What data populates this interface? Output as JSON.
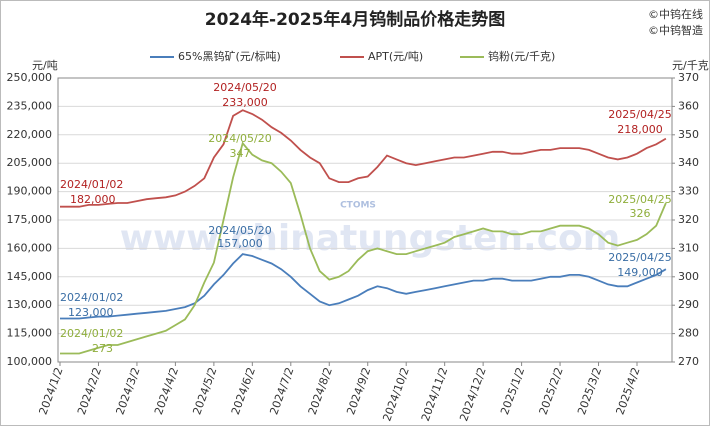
{
  "chart_data": {
    "type": "line",
    "title": "2024年-2025年4月钨制品价格走势图",
    "source": [
      "©中钨在线",
      "©中钨智造"
    ],
    "y_unit": "元/吨",
    "y2_unit": "元/千克",
    "watermark": [
      "CTOMS",
      "www.chinatungsten.com"
    ],
    "categories": [
      "2024/1/2",
      null,
      null,
      null,
      "2024/2/2",
      null,
      null,
      null,
      "2024/3/2",
      null,
      null,
      null,
      "2024/4/2",
      null,
      null,
      null,
      "2024/5/2",
      null,
      null,
      null,
      "2024/6/2",
      null,
      null,
      null,
      "2024/7/2",
      null,
      null,
      null,
      "2024/8/2",
      null,
      null,
      null,
      "2024/9/2",
      null,
      null,
      null,
      "2024/10/2",
      null,
      null,
      null,
      "2024/11/2",
      null,
      null,
      null,
      "2024/12/2",
      null,
      null,
      null,
      "2025/1/2",
      null,
      null,
      null,
      "2025/2/2",
      null,
      null,
      null,
      "2025/3/2",
      null,
      null,
      null,
      "2025/4/2",
      null,
      null,
      null
    ],
    "series": [
      {
        "name": "65%黑钨矿(元/标吨)",
        "color": "#4a7ebb",
        "axis": "y",
        "values": [
          123000,
          123000,
          123000,
          123500,
          124000,
          124000,
          124500,
          125000,
          125500,
          126000,
          126500,
          127000,
          128000,
          129000,
          131000,
          135000,
          141000,
          146000,
          152000,
          157000,
          156000,
          154000,
          152000,
          149000,
          145000,
          140000,
          136000,
          132000,
          130000,
          131000,
          133000,
          135000,
          138000,
          140000,
          139000,
          137000,
          136000,
          137000,
          138000,
          139000,
          140000,
          141000,
          142000,
          143000,
          143000,
          144000,
          144000,
          143000,
          143000,
          143000,
          144000,
          145000,
          145000,
          146000,
          146000,
          145000,
          143000,
          141000,
          140000,
          140000,
          142000,
          144000,
          146000,
          149000
        ]
      },
      {
        "name": "APT(元/吨)",
        "color": "#c0504d",
        "axis": "y",
        "values": [
          182000,
          182000,
          182000,
          183000,
          183000,
          183500,
          184000,
          184000,
          185000,
          186000,
          186500,
          187000,
          188000,
          190000,
          193000,
          197000,
          208000,
          215000,
          230000,
          233000,
          231000,
          228000,
          224000,
          221000,
          217000,
          212000,
          208000,
          205000,
          197000,
          195000,
          195000,
          197000,
          198000,
          203000,
          209000,
          207000,
          205000,
          204000,
          205000,
          206000,
          207000,
          208000,
          208000,
          209000,
          210000,
          211000,
          211000,
          210000,
          210000,
          211000,
          212000,
          212000,
          213000,
          213000,
          213000,
          212000,
          210000,
          208000,
          207000,
          208000,
          210000,
          213000,
          215000,
          218000
        ]
      },
      {
        "name": "钨粉(元/千克)",
        "color": "#9bbb59",
        "axis": "y2",
        "values": [
          273,
          273,
          273,
          274,
          275,
          276,
          276,
          277,
          278,
          279,
          280,
          281,
          283,
          285,
          290,
          298,
          305,
          320,
          335,
          347,
          343,
          341,
          340,
          337,
          333,
          322,
          310,
          302,
          299,
          300,
          302,
          306,
          309,
          310,
          309,
          308,
          308,
          309,
          310,
          311,
          312,
          314,
          315,
          316,
          317,
          316,
          316,
          315,
          315,
          316,
          316,
          317,
          318,
          318,
          318,
          317,
          315,
          312,
          311,
          312,
          313,
          315,
          318,
          326
        ]
      }
    ],
    "ylim": [
      100000,
      250000
    ],
    "yticks": [
      {
        "value": 100000,
        "label": "100,000"
      },
      {
        "value": 115000,
        "label": "115,000"
      },
      {
        "value": 130000,
        "label": "130,000"
      },
      {
        "value": 145000,
        "label": "145,000"
      },
      {
        "value": 160000,
        "label": "160,000"
      },
      {
        "value": 175000,
        "label": "175,000"
      },
      {
        "value": 190000,
        "label": "190,000"
      },
      {
        "value": 205000,
        "label": "205,000"
      },
      {
        "value": 220000,
        "label": "220,000"
      },
      {
        "value": 235000,
        "label": "235,000"
      },
      {
        "value": 250000,
        "label": "250,000"
      }
    ],
    "y2lim": [
      270,
      370
    ],
    "y2ticks": [
      270,
      280,
      290,
      300,
      310,
      320,
      330,
      340,
      350,
      360,
      370
    ],
    "grid": true,
    "annotations": [
      {
        "text": "2024/01/02",
        "color": "#b22222"
      },
      {
        "text": "182,000",
        "color": "#b22222"
      },
      {
        "text": "2024/05/20",
        "color": "#b22222"
      },
      {
        "text": "233,000",
        "color": "#b22222"
      },
      {
        "text": "2025/04/25",
        "color": "#b22222"
      },
      {
        "text": "218,000",
        "color": "#b22222"
      },
      {
        "text": "2024/01/02",
        "color": "#3a6ea5"
      },
      {
        "text": "123,000",
        "color": "#3a6ea5"
      },
      {
        "text": "2024/05/20",
        "color": "#3a6ea5"
      },
      {
        "text": "157,000",
        "color": "#3a6ea5"
      },
      {
        "text": "2025/04/25",
        "color": "#3a6ea5"
      },
      {
        "text": "149,000",
        "color": "#3a6ea5"
      },
      {
        "text": "2024/01/02",
        "color": "#8fae3c"
      },
      {
        "text": "273",
        "color": "#8fae3c"
      },
      {
        "text": "2024/05/20",
        "color": "#8fae3c"
      },
      {
        "text": "347",
        "color": "#8fae3c"
      },
      {
        "text": "2025/04/25",
        "color": "#8fae3c"
      },
      {
        "text": "326",
        "color": "#8fae3c"
      }
    ]
  }
}
